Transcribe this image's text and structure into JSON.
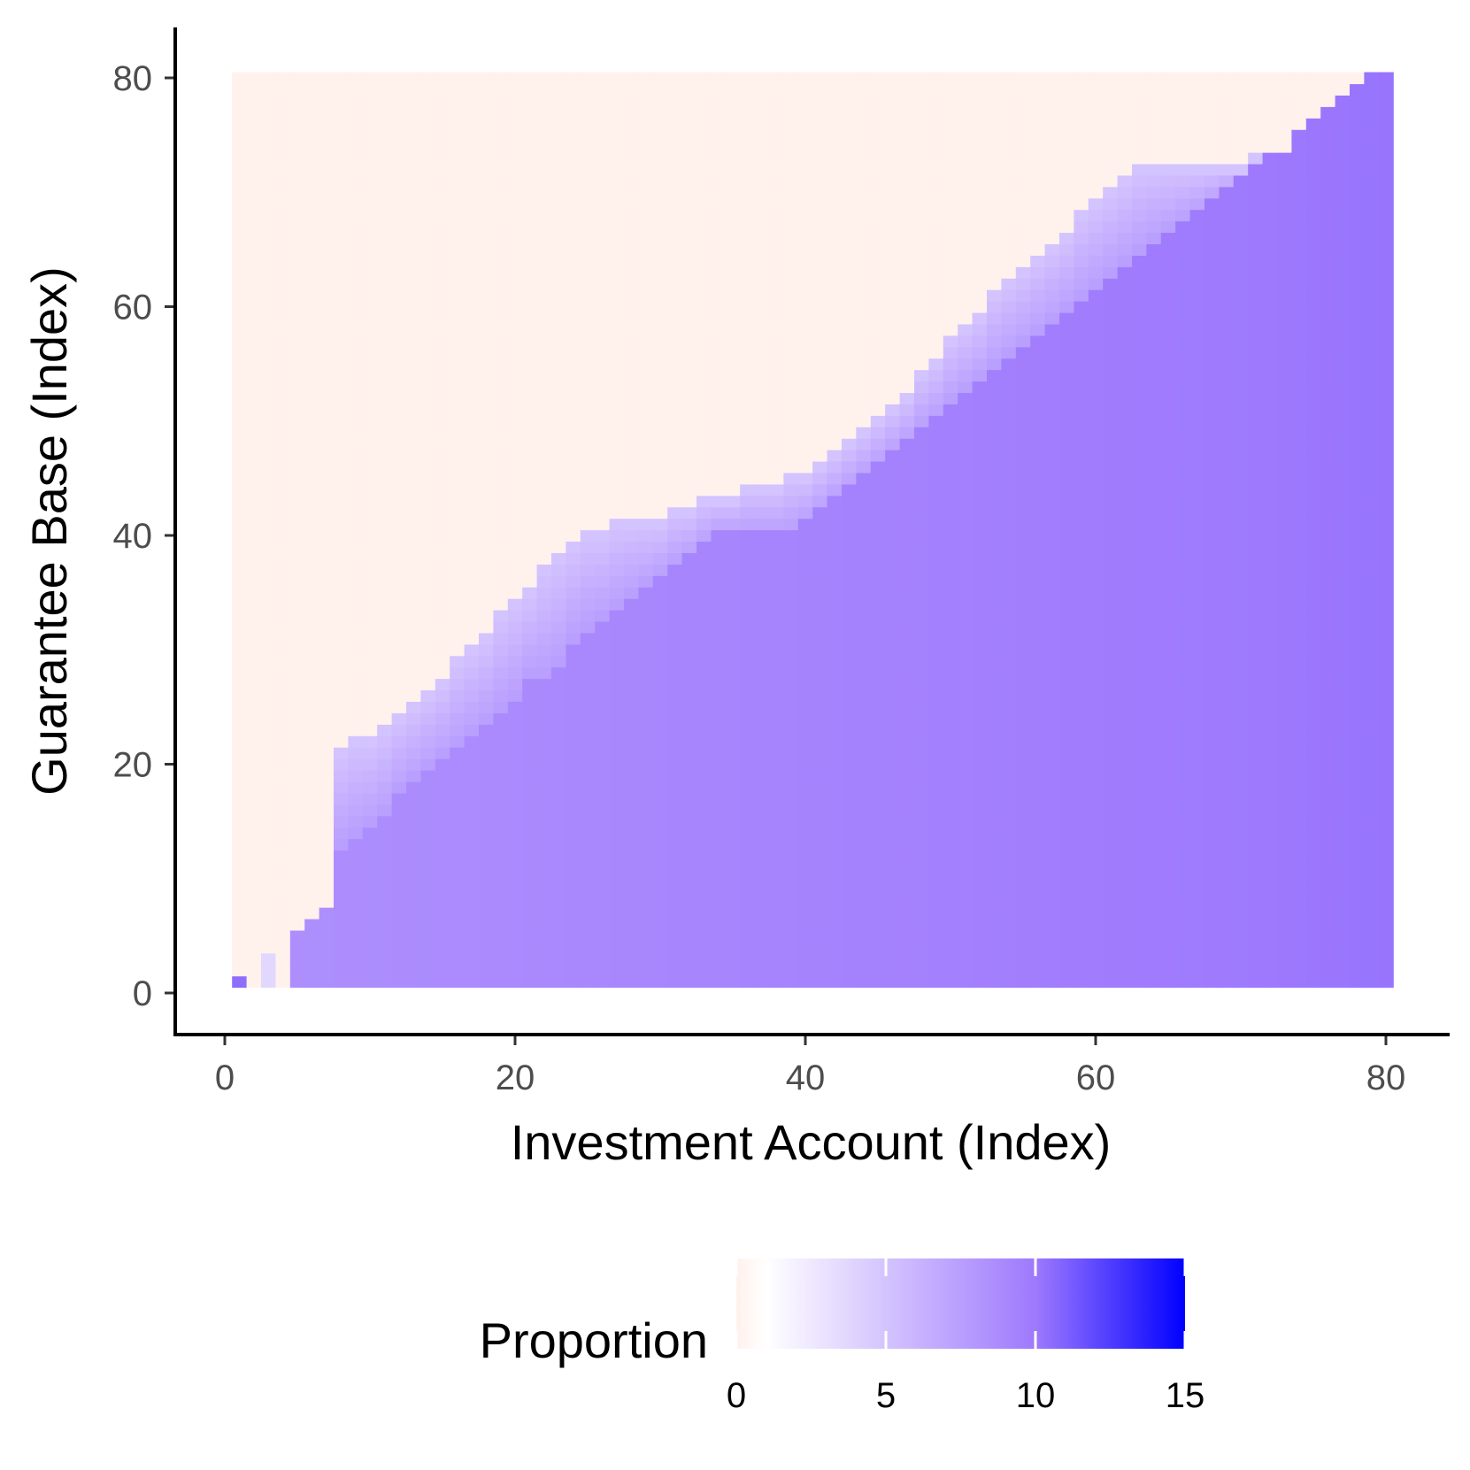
{
  "chart_data": {
    "type": "heatmap",
    "xlabel": "Investment Account (Index)",
    "ylabel": "Guarantee Base (Index)",
    "xlim": [
      -3.5,
      84
    ],
    "ylim": [
      -3.5,
      84
    ],
    "x_ticks": [
      0,
      20,
      40,
      60,
      80
    ],
    "y_ticks": [
      0,
      20,
      40,
      60,
      80
    ],
    "grid": false,
    "legend": {
      "title": "Proportion",
      "position": "bottom",
      "ticks": [
        0,
        5,
        10,
        15
      ],
      "range": [
        0,
        15
      ],
      "colors": {
        "zero": "#fff1ec",
        "low": "#ffffff",
        "mid": "#9e79fd",
        "high": "#0000ff"
      }
    },
    "grid_cells": {
      "x_min": 1,
      "x_max": 80,
      "y_min": 1,
      "y_max": 80
    },
    "special_cells": [
      {
        "x": 1,
        "y": 1,
        "value": 10.5
      },
      {
        "x": 3,
        "y": 1,
        "value": 3.0
      },
      {
        "x": 3,
        "y": 2,
        "value": 3.0
      },
      {
        "x": 3,
        "y": 3,
        "value": 3.0
      }
    ],
    "empty_columns_at_zero": [
      2,
      4
    ],
    "lower_boundary": [
      [
        5,
        5
      ],
      [
        6,
        6
      ],
      [
        7,
        7
      ],
      [
        8,
        12
      ],
      [
        9,
        13
      ],
      [
        10,
        14
      ],
      [
        11,
        15
      ],
      [
        12,
        17
      ],
      [
        13,
        18
      ],
      [
        14,
        19
      ],
      [
        15,
        20
      ],
      [
        16,
        21
      ],
      [
        17,
        22
      ],
      [
        18,
        23
      ],
      [
        19,
        24
      ],
      [
        20,
        25
      ],
      [
        21,
        27
      ],
      [
        22,
        27
      ],
      [
        23,
        28
      ],
      [
        24,
        30
      ],
      [
        25,
        31
      ],
      [
        26,
        32
      ],
      [
        27,
        33
      ],
      [
        28,
        34
      ],
      [
        29,
        35
      ],
      [
        30,
        36
      ],
      [
        31,
        37
      ],
      [
        32,
        38
      ],
      [
        33,
        39
      ],
      [
        34,
        40
      ],
      [
        35,
        40
      ],
      [
        36,
        40
      ],
      [
        37,
        40
      ],
      [
        38,
        40
      ],
      [
        39,
        40
      ],
      [
        40,
        41
      ],
      [
        41,
        42
      ],
      [
        42,
        43
      ],
      [
        43,
        44
      ],
      [
        44,
        45
      ],
      [
        45,
        46
      ],
      [
        46,
        47
      ],
      [
        47,
        48
      ],
      [
        48,
        49
      ],
      [
        49,
        50
      ],
      [
        50,
        51
      ],
      [
        51,
        52
      ],
      [
        52,
        53
      ],
      [
        53,
        54
      ],
      [
        54,
        55
      ],
      [
        55,
        56
      ],
      [
        56,
        57
      ],
      [
        57,
        58
      ],
      [
        58,
        59
      ],
      [
        59,
        60
      ],
      [
        60,
        61
      ],
      [
        61,
        62
      ],
      [
        62,
        63
      ],
      [
        63,
        64
      ],
      [
        64,
        65
      ],
      [
        65,
        66
      ],
      [
        66,
        67
      ],
      [
        67,
        68
      ],
      [
        68,
        69
      ],
      [
        69,
        70
      ],
      [
        70,
        71
      ],
      [
        71,
        72
      ],
      [
        72,
        73
      ],
      [
        73,
        74
      ],
      [
        74,
        75
      ],
      [
        75,
        76
      ],
      [
        76,
        77
      ],
      [
        77,
        78
      ],
      [
        78,
        79
      ],
      [
        79,
        80
      ],
      [
        80,
        80
      ]
    ],
    "upper_boundary": [
      [
        5,
        5
      ],
      [
        6,
        6
      ],
      [
        7,
        7
      ],
      [
        8,
        21
      ],
      [
        9,
        22
      ],
      [
        10,
        22
      ],
      [
        11,
        23
      ],
      [
        12,
        24
      ],
      [
        13,
        25
      ],
      [
        14,
        26
      ],
      [
        15,
        27
      ],
      [
        16,
        29
      ],
      [
        17,
        30
      ],
      [
        18,
        31
      ],
      [
        19,
        33
      ],
      [
        20,
        34
      ],
      [
        21,
        35
      ],
      [
        22,
        37
      ],
      [
        23,
        38
      ],
      [
        24,
        39
      ],
      [
        25,
        40
      ],
      [
        26,
        40
      ],
      [
        27,
        41
      ],
      [
        28,
        41
      ],
      [
        29,
        41
      ],
      [
        30,
        41
      ],
      [
        31,
        42
      ],
      [
        32,
        42
      ],
      [
        33,
        43
      ],
      [
        34,
        43
      ],
      [
        35,
        43
      ],
      [
        36,
        44
      ],
      [
        37,
        44
      ],
      [
        38,
        44
      ],
      [
        39,
        45
      ],
      [
        40,
        45
      ],
      [
        41,
        46
      ],
      [
        42,
        47
      ],
      [
        43,
        48
      ],
      [
        44,
        49
      ],
      [
        45,
        50
      ],
      [
        46,
        51
      ],
      [
        47,
        52
      ],
      [
        48,
        54
      ],
      [
        49,
        55
      ],
      [
        50,
        57
      ],
      [
        51,
        58
      ],
      [
        52,
        59
      ],
      [
        53,
        61
      ],
      [
        54,
        62
      ],
      [
        55,
        63
      ],
      [
        56,
        64
      ],
      [
        57,
        65
      ],
      [
        58,
        66
      ],
      [
        59,
        68
      ],
      [
        60,
        69
      ],
      [
        61,
        70
      ],
      [
        62,
        71
      ],
      [
        63,
        72
      ],
      [
        64,
        72
      ],
      [
        65,
        72
      ],
      [
        66,
        72
      ],
      [
        67,
        72
      ],
      [
        68,
        72
      ],
      [
        69,
        72
      ],
      [
        70,
        72
      ],
      [
        71,
        73
      ],
      [
        72,
        73
      ],
      [
        73,
        73
      ],
      [
        74,
        75
      ],
      [
        75,
        76
      ],
      [
        76,
        77
      ],
      [
        77,
        78
      ],
      [
        78,
        79
      ],
      [
        79,
        80
      ],
      [
        80,
        80
      ]
    ],
    "band_values": {
      "top": 4.5,
      "bottom": 7.5,
      "bulk_near": 8.4,
      "bulk_far": 10.2
    }
  }
}
